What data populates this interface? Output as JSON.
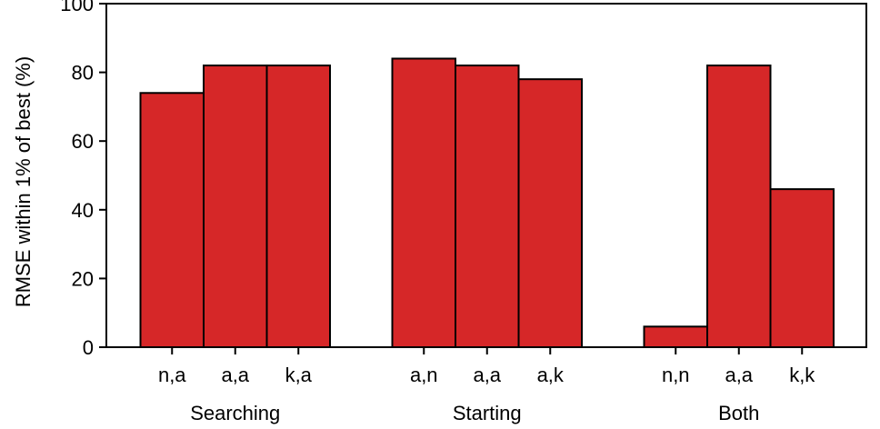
{
  "chart_data": {
    "type": "bar",
    "ylabel": "RMSE within 1% of best (%)",
    "ylim": [
      0,
      100
    ],
    "yticks": [
      0,
      20,
      40,
      60,
      80,
      100
    ],
    "bar_color": "#d62728",
    "edge_color": "#000000",
    "groups": [
      {
        "label": "Searching",
        "categories": [
          "n,a",
          "a,a",
          "k,a"
        ],
        "values": [
          74,
          82,
          82
        ]
      },
      {
        "label": "Starting",
        "categories": [
          "a,n",
          "a,a",
          "a,k"
        ],
        "values": [
          84,
          82,
          78
        ]
      },
      {
        "label": "Both",
        "categories": [
          "n,n",
          "a,a",
          "k,k"
        ],
        "values": [
          6,
          82,
          46
        ]
      }
    ]
  }
}
